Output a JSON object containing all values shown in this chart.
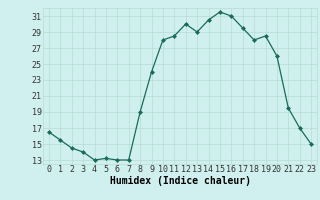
{
  "x": [
    0,
    1,
    2,
    3,
    4,
    5,
    6,
    7,
    8,
    9,
    10,
    11,
    12,
    13,
    14,
    15,
    16,
    17,
    18,
    19,
    20,
    21,
    22,
    23
  ],
  "y": [
    16.5,
    15.5,
    14.5,
    14.0,
    13.0,
    13.2,
    13.0,
    13.0,
    19.0,
    24.0,
    28.0,
    28.5,
    30.0,
    29.0,
    30.5,
    31.5,
    31.0,
    29.5,
    28.0,
    28.5,
    26.0,
    19.5,
    17.0,
    15.0
  ],
  "xlabel": "Humidex (Indice chaleur)",
  "xlim": [
    -0.5,
    23.5
  ],
  "ylim": [
    12.5,
    32
  ],
  "yticks": [
    13,
    15,
    17,
    19,
    21,
    23,
    25,
    27,
    29,
    31
  ],
  "xticks": [
    0,
    1,
    2,
    3,
    4,
    5,
    6,
    7,
    8,
    9,
    10,
    11,
    12,
    13,
    14,
    15,
    16,
    17,
    18,
    19,
    20,
    21,
    22,
    23
  ],
  "line_color": "#1a6b5a",
  "marker": "D",
  "marker_size": 2.0,
  "bg_color": "#cff0ee",
  "grid_color": "#b8dbd8",
  "tick_fontsize": 6.0,
  "xlabel_fontsize": 7.0
}
